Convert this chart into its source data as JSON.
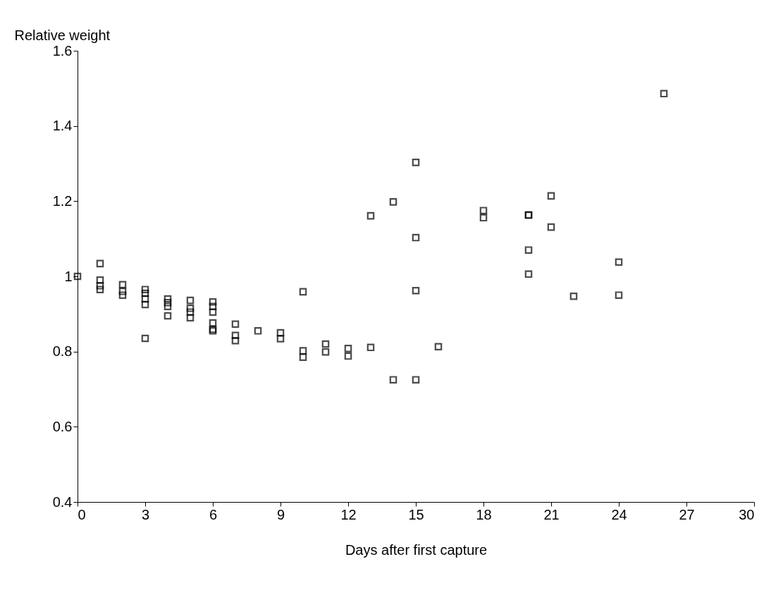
{
  "chart_data": {
    "type": "scatter",
    "xlabel": "Days after first capture",
    "ylabel": "Relative weight",
    "x": [
      0,
      1,
      1,
      1,
      1,
      2,
      2,
      2,
      3,
      3,
      3,
      3,
      3,
      4,
      4,
      4,
      4,
      5,
      5,
      5,
      5,
      6,
      6,
      6,
      6,
      6,
      6,
      7,
      7,
      7,
      8,
      9,
      9,
      10,
      10,
      10,
      11,
      11,
      12,
      12,
      13,
      13,
      14,
      14,
      15,
      15,
      15,
      15,
      16,
      18,
      18,
      20,
      20,
      20,
      20,
      21,
      21,
      22,
      24,
      24,
      26
    ],
    "series": [
      {
        "color": "#000000",
        "values": [
          1.0,
          1.034,
          0.99,
          0.975,
          0.965,
          0.978,
          0.96,
          0.95,
          0.965,
          0.955,
          0.94,
          0.925,
          0.835,
          0.94,
          0.93,
          0.92,
          0.895,
          0.936,
          0.915,
          0.905,
          0.89,
          0.932,
          0.92,
          0.905,
          0.876,
          0.859,
          0.855,
          0.873,
          0.843,
          0.829,
          0.855,
          0.85,
          0.834,
          0.959,
          0.802,
          0.785,
          0.82,
          0.799,
          0.808,
          0.788,
          1.161,
          0.811,
          1.198,
          0.725,
          1.303,
          1.103,
          0.962,
          0.725,
          0.813,
          1.175,
          1.156,
          1.163,
          1.07,
          1.006,
          1.163,
          1.214,
          1.131,
          0.947,
          1.038,
          0.95,
          1.486
        ]
      }
    ],
    "xlim": [
      0,
      30
    ],
    "xticks": [
      0,
      3,
      6,
      9,
      12,
      15,
      18,
      21,
      24,
      27,
      30
    ],
    "ylim": [
      0.4,
      1.6
    ],
    "yticks": [
      0.4,
      0.6,
      0.8,
      1,
      1.2,
      1.4,
      1.6
    ],
    "marker": "square",
    "grid": false,
    "legend": false
  }
}
